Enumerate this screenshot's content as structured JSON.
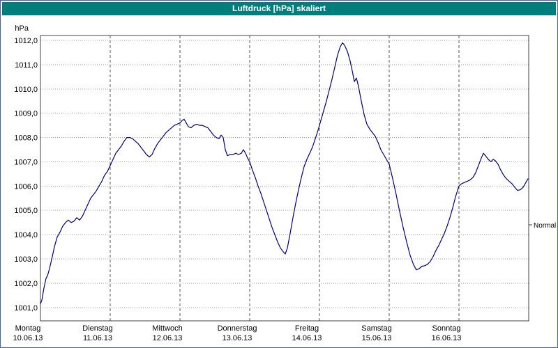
{
  "colors": {
    "titlebar": "#007d7d",
    "line": "#000080",
    "outer_border": "#4060a8"
  },
  "chart_data": {
    "type": "line",
    "title": "Luftdruck [hPa] skaliert",
    "xlabel": "",
    "ylabel": "hPa",
    "ylim": [
      1001,
      1012
    ],
    "grid": "on",
    "legend_position": "none",
    "y_axis": {
      "unit": "hPa",
      "ticks": [
        {
          "value": 1001,
          "label": "1001,0"
        },
        {
          "value": 1002,
          "label": "1002,0"
        },
        {
          "value": 1003,
          "label": "1003,0"
        },
        {
          "value": 1004,
          "label": "1004,0"
        },
        {
          "value": 1005,
          "label": "1005,0"
        },
        {
          "value": 1006,
          "label": "1006,0"
        },
        {
          "value": 1007,
          "label": "1007,0"
        },
        {
          "value": 1008,
          "label": "1008,0"
        },
        {
          "value": 1009,
          "label": "1009,0"
        },
        {
          "value": 1010,
          "label": "1010,0"
        },
        {
          "value": 1011,
          "label": "1011,0"
        },
        {
          "value": 1012,
          "label": "1012,0"
        }
      ]
    },
    "x_axis": {
      "days": [
        {
          "name": "Montag",
          "date": "10.06.13"
        },
        {
          "name": "Dienstag",
          "date": "11.06.13"
        },
        {
          "name": "Mittwoch",
          "date": "12.06.13"
        },
        {
          "name": "Donnerstag",
          "date": "13.06.13"
        },
        {
          "name": "Freitag",
          "date": "14.06.13"
        },
        {
          "name": "Samstag",
          "date": "15.06.13"
        },
        {
          "name": "Sonntag",
          "date": "16.06.13"
        }
      ]
    },
    "normal": {
      "label": "Normal",
      "value": 1004.4
    },
    "series": [
      {
        "name": "Luftdruck",
        "points": [
          [
            0.0,
            1001.15
          ],
          [
            0.02,
            1001.3
          ],
          [
            0.05,
            1001.8
          ],
          [
            0.08,
            1002.2
          ],
          [
            0.1,
            1002.3
          ],
          [
            0.13,
            1002.6
          ],
          [
            0.17,
            1003.1
          ],
          [
            0.2,
            1003.5
          ],
          [
            0.24,
            1003.9
          ],
          [
            0.28,
            1004.1
          ],
          [
            0.32,
            1004.35
          ],
          [
            0.36,
            1004.5
          ],
          [
            0.4,
            1004.6
          ],
          [
            0.44,
            1004.5
          ],
          [
            0.48,
            1004.55
          ],
          [
            0.52,
            1004.7
          ],
          [
            0.56,
            1004.6
          ],
          [
            0.6,
            1004.75
          ],
          [
            0.64,
            1005.0
          ],
          [
            0.68,
            1005.25
          ],
          [
            0.72,
            1005.5
          ],
          [
            0.76,
            1005.65
          ],
          [
            0.8,
            1005.8
          ],
          [
            0.84,
            1006.0
          ],
          [
            0.88,
            1006.2
          ],
          [
            0.92,
            1006.45
          ],
          [
            0.96,
            1006.6
          ],
          [
            1.0,
            1006.85
          ],
          [
            1.04,
            1007.1
          ],
          [
            1.08,
            1007.35
          ],
          [
            1.12,
            1007.5
          ],
          [
            1.16,
            1007.65
          ],
          [
            1.2,
            1007.85
          ],
          [
            1.24,
            1008.0
          ],
          [
            1.28,
            1008.0
          ],
          [
            1.32,
            1007.95
          ],
          [
            1.36,
            1007.85
          ],
          [
            1.4,
            1007.75
          ],
          [
            1.44,
            1007.6
          ],
          [
            1.48,
            1007.45
          ],
          [
            1.52,
            1007.3
          ],
          [
            1.56,
            1007.2
          ],
          [
            1.6,
            1007.3
          ],
          [
            1.64,
            1007.55
          ],
          [
            1.68,
            1007.75
          ],
          [
            1.72,
            1007.9
          ],
          [
            1.76,
            1008.05
          ],
          [
            1.8,
            1008.2
          ],
          [
            1.84,
            1008.3
          ],
          [
            1.88,
            1008.4
          ],
          [
            1.92,
            1008.5
          ],
          [
            1.96,
            1008.55
          ],
          [
            2.0,
            1008.6
          ],
          [
            2.03,
            1008.7
          ],
          [
            2.06,
            1008.75
          ],
          [
            2.09,
            1008.6
          ],
          [
            2.12,
            1008.45
          ],
          [
            2.16,
            1008.4
          ],
          [
            2.2,
            1008.5
          ],
          [
            2.24,
            1008.55
          ],
          [
            2.28,
            1008.5
          ],
          [
            2.32,
            1008.5
          ],
          [
            2.36,
            1008.45
          ],
          [
            2.4,
            1008.4
          ],
          [
            2.44,
            1008.25
          ],
          [
            2.48,
            1008.1
          ],
          [
            2.52,
            1008.0
          ],
          [
            2.56,
            1007.95
          ],
          [
            2.59,
            1008.1
          ],
          [
            2.62,
            1008.0
          ],
          [
            2.65,
            1007.5
          ],
          [
            2.68,
            1007.25
          ],
          [
            2.72,
            1007.3
          ],
          [
            2.76,
            1007.3
          ],
          [
            2.8,
            1007.35
          ],
          [
            2.84,
            1007.3
          ],
          [
            2.88,
            1007.35
          ],
          [
            2.91,
            1007.5
          ],
          [
            2.94,
            1007.35
          ],
          [
            2.97,
            1007.15
          ],
          [
            3.0,
            1007.0
          ],
          [
            3.04,
            1006.65
          ],
          [
            3.08,
            1006.35
          ],
          [
            3.12,
            1006.0
          ],
          [
            3.16,
            1005.7
          ],
          [
            3.2,
            1005.35
          ],
          [
            3.24,
            1005.0
          ],
          [
            3.28,
            1004.65
          ],
          [
            3.32,
            1004.3
          ],
          [
            3.36,
            1004.0
          ],
          [
            3.4,
            1003.7
          ],
          [
            3.44,
            1003.45
          ],
          [
            3.48,
            1003.3
          ],
          [
            3.51,
            1003.2
          ],
          [
            3.54,
            1003.45
          ],
          [
            3.58,
            1004.05
          ],
          [
            3.62,
            1004.7
          ],
          [
            3.66,
            1005.3
          ],
          [
            3.7,
            1005.85
          ],
          [
            3.74,
            1006.35
          ],
          [
            3.78,
            1006.8
          ],
          [
            3.82,
            1007.1
          ],
          [
            3.86,
            1007.35
          ],
          [
            3.9,
            1007.6
          ],
          [
            3.94,
            1007.95
          ],
          [
            3.98,
            1008.3
          ],
          [
            4.02,
            1008.7
          ],
          [
            4.06,
            1009.1
          ],
          [
            4.1,
            1009.5
          ],
          [
            4.14,
            1009.95
          ],
          [
            4.18,
            1010.4
          ],
          [
            4.22,
            1010.9
          ],
          [
            4.26,
            1011.4
          ],
          [
            4.3,
            1011.75
          ],
          [
            4.33,
            1011.9
          ],
          [
            4.36,
            1011.8
          ],
          [
            4.4,
            1011.55
          ],
          [
            4.44,
            1011.15
          ],
          [
            4.47,
            1010.75
          ],
          [
            4.5,
            1010.3
          ],
          [
            4.53,
            1010.45
          ],
          [
            4.56,
            1010.1
          ],
          [
            4.6,
            1009.5
          ],
          [
            4.64,
            1008.95
          ],
          [
            4.68,
            1008.55
          ],
          [
            4.72,
            1008.35
          ],
          [
            4.76,
            1008.2
          ],
          [
            4.8,
            1008.05
          ],
          [
            4.84,
            1007.8
          ],
          [
            4.88,
            1007.5
          ],
          [
            4.92,
            1007.3
          ],
          [
            4.96,
            1007.1
          ],
          [
            5.0,
            1006.9
          ],
          [
            5.05,
            1006.3
          ],
          [
            5.1,
            1005.65
          ],
          [
            5.15,
            1004.95
          ],
          [
            5.2,
            1004.3
          ],
          [
            5.25,
            1003.7
          ],
          [
            5.3,
            1003.15
          ],
          [
            5.35,
            1002.75
          ],
          [
            5.39,
            1002.55
          ],
          [
            5.43,
            1002.6
          ],
          [
            5.47,
            1002.7
          ],
          [
            5.51,
            1002.72
          ],
          [
            5.55,
            1002.78
          ],
          [
            5.59,
            1002.9
          ],
          [
            5.63,
            1003.1
          ],
          [
            5.67,
            1003.35
          ],
          [
            5.71,
            1003.55
          ],
          [
            5.75,
            1003.8
          ],
          [
            5.79,
            1004.05
          ],
          [
            5.83,
            1004.35
          ],
          [
            5.87,
            1004.7
          ],
          [
            5.91,
            1005.1
          ],
          [
            5.95,
            1005.55
          ],
          [
            6.0,
            1006.0
          ],
          [
            6.04,
            1006.1
          ],
          [
            6.08,
            1006.15
          ],
          [
            6.12,
            1006.2
          ],
          [
            6.16,
            1006.25
          ],
          [
            6.2,
            1006.35
          ],
          [
            6.24,
            1006.55
          ],
          [
            6.28,
            1006.85
          ],
          [
            6.32,
            1007.15
          ],
          [
            6.35,
            1007.35
          ],
          [
            6.38,
            1007.25
          ],
          [
            6.42,
            1007.1
          ],
          [
            6.46,
            1007.0
          ],
          [
            6.49,
            1007.1
          ],
          [
            6.52,
            1007.05
          ],
          [
            6.56,
            1006.9
          ],
          [
            6.6,
            1006.65
          ],
          [
            6.64,
            1006.45
          ],
          [
            6.68,
            1006.3
          ],
          [
            6.72,
            1006.2
          ],
          [
            6.76,
            1006.1
          ],
          [
            6.8,
            1005.95
          ],
          [
            6.84,
            1005.82
          ],
          [
            6.88,
            1005.85
          ],
          [
            6.92,
            1005.95
          ],
          [
            6.96,
            1006.15
          ],
          [
            6.99,
            1006.3
          ]
        ]
      }
    ]
  }
}
